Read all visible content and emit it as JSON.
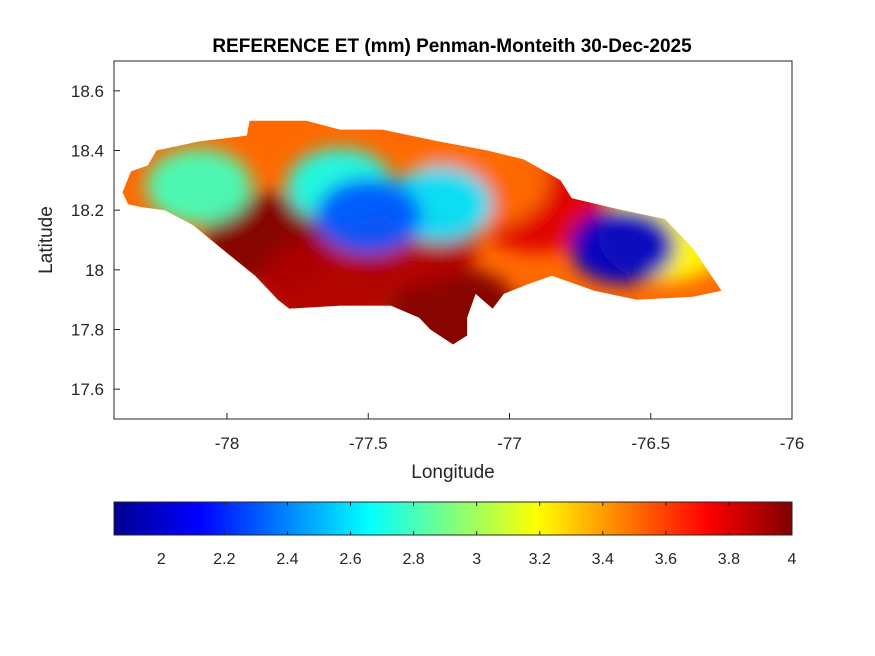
{
  "figure": {
    "title": "REFERENCE ET (mm) Penman-Monteith 30-Dec-2025"
  },
  "map": {
    "xlabel": "Longitude",
    "ylabel": "Latitude",
    "xlim": [
      -78.4,
      -76.0
    ],
    "ylim": [
      17.5,
      18.7
    ],
    "xticks": [
      -78,
      -77.5,
      -77,
      -76.5,
      -76
    ],
    "xtick_labels": [
      "-78",
      "-77.5",
      "-77",
      "-76.5",
      "-76"
    ],
    "yticks": [
      17.6,
      17.8,
      18.0,
      18.2,
      18.4,
      18.6
    ],
    "ytick_labels": [
      "17.6",
      "17.8",
      "18",
      "18.2",
      "18.4",
      "18.6"
    ],
    "region": "Jamaica",
    "variable": "Reference evapotranspiration (mm)",
    "field_hotspots": [
      {
        "lon": -76.6,
        "lat": 18.08,
        "et": 2.0
      },
      {
        "lon": -77.5,
        "lat": 18.18,
        "et": 2.3
      },
      {
        "lon": -77.6,
        "lat": 18.28,
        "et": 2.7
      },
      {
        "lon": -78.1,
        "lat": 18.28,
        "et": 2.8
      },
      {
        "lon": -77.25,
        "lat": 18.22,
        "et": 2.6
      },
      {
        "lon": -77.85,
        "lat": 18.1,
        "et": 4.0
      },
      {
        "lon": -77.2,
        "lat": 17.85,
        "et": 4.0
      },
      {
        "lon": -77.35,
        "lat": 18.1,
        "et": 3.9
      },
      {
        "lon": -76.9,
        "lat": 18.22,
        "et": 3.8
      },
      {
        "lon": -77.65,
        "lat": 17.95,
        "et": 3.9
      },
      {
        "lon": -77.1,
        "lat": 18.3,
        "et": 3.5
      },
      {
        "lon": -76.45,
        "lat": 18.12,
        "et": 3.2
      }
    ]
  },
  "colorbar": {
    "colormap": "jet",
    "clim": [
      1.85,
      4.0
    ],
    "ticks": [
      2,
      2.2,
      2.4,
      2.6,
      2.8,
      3,
      3.2,
      3.4,
      3.6,
      3.8,
      4
    ],
    "tick_labels": [
      "2",
      "2.2",
      "2.4",
      "2.6",
      "2.8",
      "3",
      "3.2",
      "3.4",
      "3.6",
      "3.8",
      "4"
    ]
  }
}
